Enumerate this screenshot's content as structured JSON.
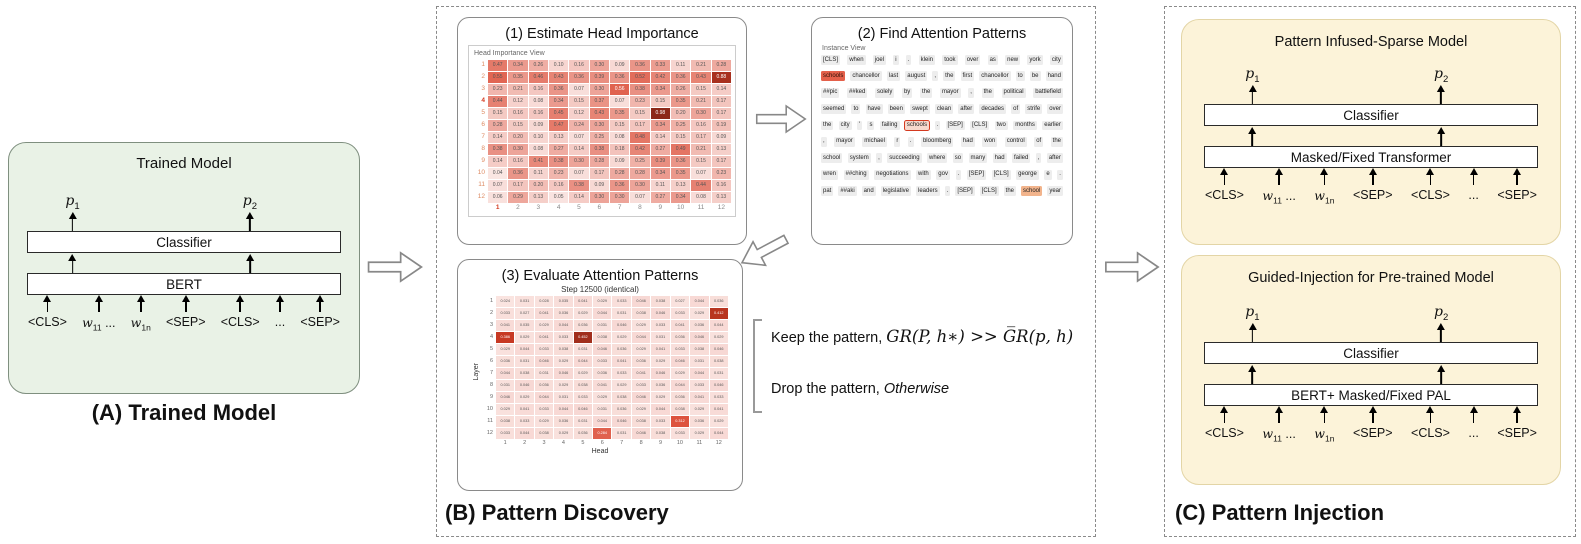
{
  "colors": {
    "panel_a_bg": "#e9f2e6",
    "panel_c_bg": "#fcf3d9",
    "highlight_red": "#e4604a",
    "heat_red": "#c0392b"
  },
  "panel_a": {
    "title": "Trained Model",
    "caption": "(A) Trained Model",
    "stack": {
      "p_labels": [
        [
          "p",
          "1"
        ],
        [
          "p",
          "2"
        ]
      ],
      "bars": [
        "Classifier",
        "BERT"
      ],
      "tokens": [
        "<CLS>",
        [
          "w",
          "11",
          " ..."
        ],
        [
          "w",
          "1n"
        ],
        "<SEP>",
        "<CLS>",
        "...",
        "<SEP>"
      ]
    }
  },
  "panel_b": {
    "caption": "(B) Pattern Discovery",
    "step1": {
      "title": "(1) Estimate Head Importance",
      "figure_label": "Head Importance View",
      "heatmap": {
        "row_labels": [
          "1",
          "2",
          "3",
          "4",
          "5",
          "6",
          "7",
          "8",
          "9",
          "10",
          "11",
          "12"
        ],
        "col_labels": [
          "1",
          "2",
          "3",
          "4",
          "5",
          "6",
          "7",
          "8",
          "9",
          "10",
          "11",
          "12"
        ],
        "red_row": "4",
        "red_col": "1",
        "vmax": 1.0,
        "decimals": 2,
        "values": [
          [
            0.47,
            0.34,
            0.26,
            0.1,
            0.16,
            0.3,
            0.09,
            0.36,
            0.33,
            0.11,
            0.21,
            0.28
          ],
          [
            0.55,
            0.35,
            0.46,
            0.43,
            0.36,
            0.39,
            0.36,
            0.52,
            0.42,
            0.36,
            0.43,
            0.88
          ],
          [
            0.23,
            0.21,
            0.16,
            0.36,
            0.07,
            0.3,
            0.56,
            0.38,
            0.34,
            0.26,
            0.15,
            0.14
          ],
          [
            0.44,
            0.12,
            0.08,
            0.34,
            0.15,
            0.37,
            0.07,
            0.23,
            0.15,
            0.35,
            0.21,
            0.17
          ],
          [
            0.15,
            0.16,
            0.16,
            0.45,
            0.12,
            0.43,
            0.35,
            0.15,
            0.98,
            0.2,
            0.3,
            0.17
          ],
          [
            0.28,
            0.15,
            0.09,
            0.47,
            0.24,
            0.3,
            0.15,
            0.17,
            0.34,
            0.25,
            0.16,
            0.19
          ],
          [
            0.14,
            0.2,
            0.1,
            0.13,
            0.07,
            0.25,
            0.08,
            0.48,
            0.14,
            0.15,
            0.17,
            0.09
          ],
          [
            0.38,
            0.3,
            0.08,
            0.27,
            0.14,
            0.38,
            0.18,
            0.42,
            0.27,
            0.49,
            0.21,
            0.13
          ],
          [
            0.14,
            0.16,
            0.41,
            0.38,
            0.3,
            0.28,
            0.09,
            0.25,
            0.39,
            0.36,
            0.15,
            0.17
          ],
          [
            0.04,
            0.36,
            0.11,
            0.23,
            0.07,
            0.17,
            0.28,
            0.28,
            0.34,
            0.35,
            0.07,
            0.23
          ],
          [
            0.07,
            0.17,
            0.2,
            0.16,
            0.38,
            0.09,
            0.36,
            0.3,
            0.11,
            0.13,
            0.44,
            0.16
          ],
          [
            0.06,
            0.29,
            0.13,
            0.05,
            0.14,
            0.3,
            0.3,
            0.07,
            0.27,
            0.34,
            0.08,
            0.13
          ]
        ]
      }
    },
    "step2": {
      "title": "(2) Find Attention Patterns",
      "figure_label": "Instance View",
      "lines": [
        [
          "[CLS]",
          "when",
          "joel",
          "i",
          ".",
          "klein",
          "took",
          "over",
          "as",
          "new",
          "york",
          "city"
        ],
        [
          [
            "schools",
            2
          ],
          "chancellor",
          "last",
          "august",
          ",",
          "the",
          "first",
          "chancellor",
          "to",
          "be",
          "hand"
        ],
        [
          "##pic",
          "##ked",
          "solely",
          "by",
          "the",
          "mayor",
          ",",
          "the",
          "political",
          "battlefield"
        ],
        [
          "seemed",
          "to",
          "have",
          "been",
          "swept",
          "clean",
          "after",
          "decades",
          "of",
          "strife",
          "over"
        ],
        [
          "the",
          "city",
          "'",
          "s",
          "failing",
          [
            "schools",
            3
          ],
          ".",
          "[SEP]",
          "[CLS]",
          "two",
          "months",
          "earlier"
        ],
        [
          ",",
          "mayor",
          "michael",
          "r",
          ".",
          "bloomberg",
          "had",
          "won",
          "control",
          "of",
          "the"
        ],
        [
          "school",
          "system",
          ",",
          "succeeding",
          "where",
          "so",
          "many",
          "had",
          "failed",
          ",",
          "after"
        ],
        [
          "wren",
          "##ching",
          "negotiations",
          "with",
          "gov",
          ".",
          "[SEP]",
          "[CLS]",
          "george",
          "e",
          "."
        ],
        [
          "pat",
          "##aki",
          "and",
          "legislative",
          "leaders",
          ".",
          "[SEP]",
          "[CLS]",
          "the",
          [
            "school",
            4
          ],
          "year"
        ]
      ]
    },
    "step3": {
      "title": "(3) Evaluate Attention Patterns",
      "figure_title": "Step 12500 (identical)",
      "ylabel": "Layer",
      "xlabel": "Head",
      "heatmap": {
        "row_labels": [
          "1",
          "2",
          "3",
          "4",
          "5",
          "6",
          "7",
          "8",
          "9",
          "10",
          "11",
          "12"
        ],
        "col_labels": [
          "1",
          "2",
          "3",
          "4",
          "5",
          "6",
          "7",
          "8",
          "9",
          "10",
          "11",
          "12"
        ],
        "vmax": 0.5,
        "decimals": 3,
        "values": [
          [
            0.024,
            0.031,
            0.028,
            0.035,
            0.041,
            0.029,
            0.033,
            0.046,
            0.038,
            0.027,
            0.044,
            0.036
          ],
          [
            0.033,
            0.027,
            0.041,
            0.036,
            0.029,
            0.044,
            0.031,
            0.038,
            0.046,
            0.033,
            0.029,
            0.412
          ],
          [
            0.041,
            0.035,
            0.029,
            0.044,
            0.036,
            0.031,
            0.046,
            0.029,
            0.033,
            0.041,
            0.036,
            0.044
          ],
          [
            0.386,
            0.029,
            0.041,
            0.033,
            0.452,
            0.038,
            0.029,
            0.044,
            0.031,
            0.036,
            0.046,
            0.029
          ],
          [
            0.029,
            0.044,
            0.033,
            0.038,
            0.031,
            0.046,
            0.036,
            0.029,
            0.041,
            0.033,
            0.038,
            0.046
          ],
          [
            0.036,
            0.031,
            0.046,
            0.029,
            0.044,
            0.033,
            0.041,
            0.036,
            0.029,
            0.046,
            0.031,
            0.038
          ],
          [
            0.044,
            0.038,
            0.031,
            0.046,
            0.029,
            0.036,
            0.033,
            0.041,
            0.046,
            0.029,
            0.044,
            0.031
          ],
          [
            0.031,
            0.046,
            0.036,
            0.029,
            0.038,
            0.041,
            0.029,
            0.033,
            0.036,
            0.044,
            0.033,
            0.046
          ],
          [
            0.046,
            0.029,
            0.044,
            0.031,
            0.033,
            0.029,
            0.038,
            0.046,
            0.029,
            0.036,
            0.041,
            0.033
          ],
          [
            0.029,
            0.041,
            0.033,
            0.044,
            0.046,
            0.031,
            0.036,
            0.029,
            0.044,
            0.038,
            0.029,
            0.041
          ],
          [
            0.038,
            0.033,
            0.029,
            0.036,
            0.031,
            0.044,
            0.046,
            0.038,
            0.033,
            0.312,
            0.036,
            0.029
          ],
          [
            0.033,
            0.044,
            0.038,
            0.029,
            0.036,
            0.284,
            0.031,
            0.046,
            0.038,
            0.033,
            0.029,
            0.044
          ]
        ]
      }
    },
    "rule": {
      "keep_prefix": "Keep the pattern, ",
      "keep_math": "GR(P, h∗) >> G̅R(p, h)",
      "drop_prefix": "Drop the pattern, ",
      "drop_word": "Otherwise"
    }
  },
  "panel_c": {
    "caption": "(C) Pattern Injection",
    "top": {
      "title": "Pattern Infused-Sparse Model",
      "stack": {
        "p_labels": [
          [
            "p",
            "1"
          ],
          [
            "p",
            "2"
          ]
        ],
        "bars": [
          "Classifier",
          "Masked/Fixed Transformer"
        ],
        "tokens": [
          "<CLS>",
          [
            "w",
            "11",
            " ..."
          ],
          [
            "w",
            "1n"
          ],
          "<SEP>",
          "<CLS>",
          "...",
          "<SEP>"
        ]
      }
    },
    "bottom": {
      "title": "Guided-Injection for Pre-trained Model",
      "stack": {
        "p_labels": [
          [
            "p",
            "1"
          ],
          [
            "p",
            "2"
          ]
        ],
        "bars": [
          "Classifier",
          "BERT+ Masked/Fixed PAL"
        ],
        "tokens": [
          "<CLS>",
          [
            "w",
            "11",
            " ..."
          ],
          [
            "w",
            "1n"
          ],
          "<SEP>",
          "<CLS>",
          "...",
          "<SEP>"
        ]
      }
    }
  }
}
